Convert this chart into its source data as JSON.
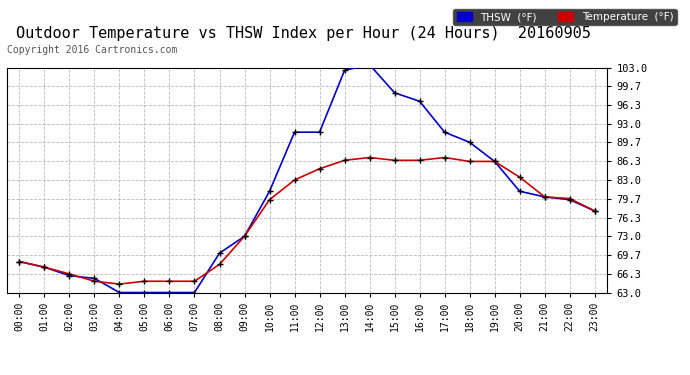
{
  "title": "Outdoor Temperature vs THSW Index per Hour (24 Hours)  20160905",
  "copyright": "Copyright 2016 Cartronics.com",
  "hours": [
    "00:00",
    "01:00",
    "02:00",
    "03:00",
    "04:00",
    "05:00",
    "06:00",
    "07:00",
    "08:00",
    "09:00",
    "10:00",
    "11:00",
    "12:00",
    "13:00",
    "14:00",
    "15:00",
    "16:00",
    "17:00",
    "18:00",
    "19:00",
    "20:00",
    "21:00",
    "22:00",
    "23:00"
  ],
  "thsw": [
    68.5,
    67.5,
    66.0,
    65.5,
    63.0,
    63.0,
    63.0,
    63.0,
    70.0,
    73.0,
    81.0,
    91.5,
    91.5,
    102.5,
    103.5,
    98.5,
    97.0,
    91.5,
    89.7,
    86.3,
    81.0,
    80.0,
    79.5,
    77.5
  ],
  "temp": [
    68.5,
    67.5,
    66.3,
    65.0,
    64.5,
    65.0,
    65.0,
    65.0,
    68.0,
    73.0,
    79.5,
    83.0,
    85.0,
    86.5,
    87.0,
    86.5,
    86.5,
    87.0,
    86.3,
    86.3,
    83.5,
    80.0,
    79.7,
    77.5
  ],
  "thsw_color": "#0000cc",
  "temp_color": "#cc0000",
  "marker_color": "#000000",
  "bg_color": "#ffffff",
  "grid_color": "#bbbbbb",
  "ylim_min": 63.0,
  "ylim_max": 103.0,
  "yticks": [
    63.0,
    66.3,
    69.7,
    73.0,
    76.3,
    79.7,
    83.0,
    86.3,
    89.7,
    93.0,
    96.3,
    99.7,
    103.0
  ],
  "title_fontsize": 11,
  "copyright_fontsize": 7,
  "legend_thsw_label": "THSW  (°F)",
  "legend_temp_label": "Temperature  (°F)"
}
